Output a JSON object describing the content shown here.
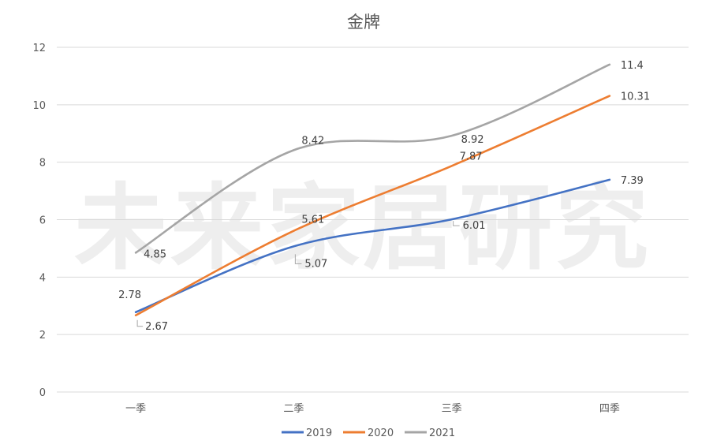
{
  "chart_data": {
    "type": "line",
    "title": "金牌",
    "categories": [
      "一季",
      "二季",
      "三季",
      "四季"
    ],
    "yticks": [
      "0",
      "2",
      "4",
      "6",
      "8",
      "10",
      "12"
    ],
    "ylim": [
      0,
      12
    ],
    "grid": true,
    "legend_position": "bottom",
    "series": [
      {
        "name": "2019",
        "color": "#4472C4",
        "values": [
          2.78,
          5.07,
          6.01,
          7.39
        ],
        "labels": [
          "2.78",
          "5.07",
          "6.01",
          "7.39"
        ]
      },
      {
        "name": "2020",
        "color": "#ED7D31",
        "values": [
          2.67,
          5.61,
          7.87,
          10.31
        ],
        "labels": [
          "2.67",
          "5.61",
          "7.87",
          "10.31"
        ]
      },
      {
        "name": "2021",
        "color": "#A5A5A5",
        "values": [
          4.85,
          8.42,
          8.92,
          11.4
        ],
        "labels": [
          "4.85",
          "8.42",
          "8.92",
          "11.4"
        ]
      }
    ],
    "watermark": "未来家居研究"
  }
}
